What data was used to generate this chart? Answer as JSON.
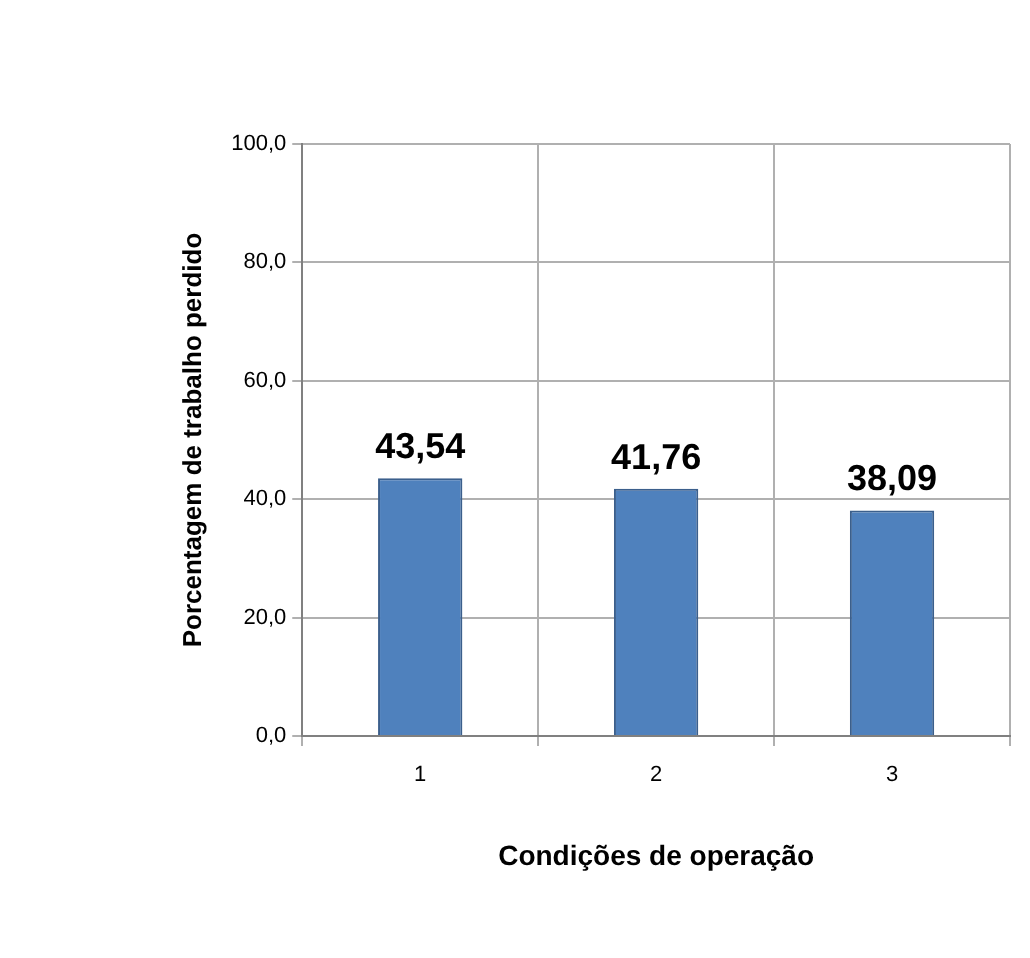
{
  "chart_data": {
    "type": "bar",
    "xlabel": "Condições de operação",
    "ylabel": "Porcentagem de trabalho perdido",
    "categories": [
      "1",
      "2",
      "3"
    ],
    "values": [
      43.54,
      41.76,
      38.09
    ],
    "color": "#4f81bd",
    "value_labels": [
      "43,54",
      "41,76",
      "38,09"
    ],
    "ylim": [
      0,
      100
    ],
    "yticks": [
      {
        "value": 0,
        "label": "0,0"
      },
      {
        "value": 20,
        "label": "20,0"
      },
      {
        "value": 40,
        "label": "40,0"
      },
      {
        "value": 60,
        "label": "60,0"
      },
      {
        "value": 80,
        "label": "80,0"
      },
      {
        "value": 100,
        "label": "100,0"
      }
    ],
    "grid": true,
    "legend": false
  }
}
